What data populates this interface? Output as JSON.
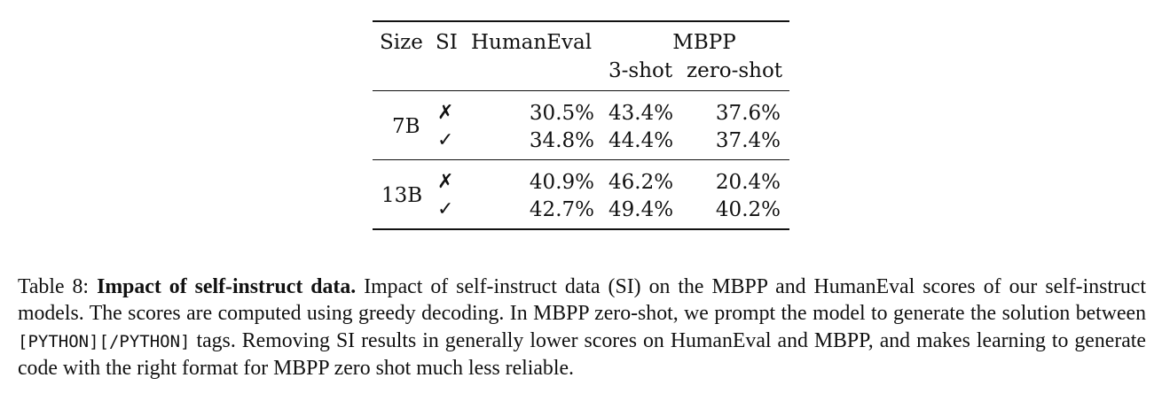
{
  "table": {
    "headers": {
      "size": "Size",
      "si": "SI",
      "humaneval": "HumanEval",
      "mbpp": "MBPP",
      "mbpp_3shot": "3-shot",
      "mbpp_zeroshot": "zero-shot"
    },
    "groups": [
      {
        "size": "7B",
        "rows": [
          {
            "si": "✗",
            "humaneval": "30.5%",
            "mbpp_3shot": "43.4%",
            "mbpp_zeroshot": "37.6%"
          },
          {
            "si": "✓",
            "humaneval": "34.8%",
            "mbpp_3shot": "44.4%",
            "mbpp_zeroshot": "37.4%"
          }
        ]
      },
      {
        "size": "13B",
        "rows": [
          {
            "si": "✗",
            "humaneval": "40.9%",
            "mbpp_3shot": "46.2%",
            "mbpp_zeroshot": "20.4%"
          },
          {
            "si": "✓",
            "humaneval": "42.7%",
            "mbpp_3shot": "49.4%",
            "mbpp_zeroshot": "40.2%"
          }
        ]
      }
    ]
  },
  "caption": {
    "label": "Table 8:",
    "title": "Impact of self-instruct data.",
    "text_1": "Impact of self-instruct data (SI) on the MBPP and HumanEval scores of our self-instruct models. The scores are computed using greedy decoding. In MBPP zero-shot, we prompt the model to generate the solution between",
    "code": "[PYTHON][/PYTHON]",
    "text_2": "tags. Removing SI results in generally lower scores on HumanEval and MBPP, and makes learning to generate code with the right format for MBPP zero shot much less reliable."
  }
}
